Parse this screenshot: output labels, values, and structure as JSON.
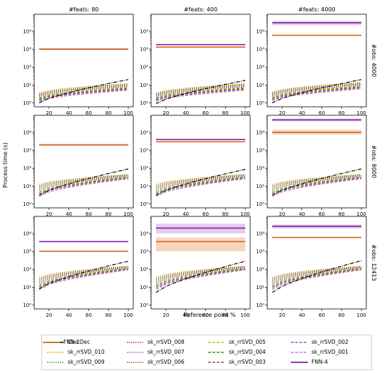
{
  "figure": {
    "ylabel": "Process time (s)",
    "xlabel": "Reference point %",
    "col_titles": [
      "#feats: 80",
      "#feats: 400",
      "#feats: 4000"
    ],
    "row_titles": [
      "#obs: 4000",
      "#obs: 8000",
      "#obs: 12413"
    ],
    "x_ticks": [
      "20",
      "40",
      "60",
      "80",
      "100"
    ],
    "y_ticks": [
      "10⁰",
      "10¹",
      "10²",
      "10³",
      "10⁴"
    ],
    "y_tick_values": [
      1,
      10,
      100,
      1000,
      10000
    ]
  },
  "legend": [
    {
      "label": "Cho.Dec",
      "color": "#000000",
      "style": "dashdot"
    },
    {
      "label": "sk_rrSVD_010",
      "color": "#e69f00",
      "style": "dotted"
    },
    {
      "label": "sk_rrSVD_009",
      "color": "#2ca02c",
      "style": "dotted"
    },
    {
      "label": "sk_rrSVD_008",
      "color": "#d62728",
      "style": "dotted"
    },
    {
      "label": "sk_rrSVD_007",
      "color": "#9467bd",
      "style": "dotted"
    },
    {
      "label": "sk_rrSVD_006",
      "color": "#8c564b",
      "style": "dotted"
    },
    {
      "label": "sk_rrSVD_005",
      "color": "#bcbd22",
      "style": "dashed"
    },
    {
      "label": "sk_rrSVD_004",
      "color": "#2ca02c",
      "style": "dashed"
    },
    {
      "label": "sk_rrSVD_003",
      "color": "#8c564b",
      "style": "dashed"
    },
    {
      "label": "sk_rrSVD_002",
      "color": "#9467bd",
      "style": "dashed"
    },
    {
      "label": "sk_rrSVD_001",
      "color": "#e377c2",
      "style": "dashed"
    },
    {
      "label": "FNN-4",
      "color": "#7b1fa2",
      "style": "solid"
    },
    {
      "label": "FNN-2",
      "color": "#d2691e",
      "style": "solid"
    }
  ],
  "chart_data": {
    "type": "line",
    "layout": "3x3 grid",
    "x": [
      10,
      20,
      30,
      40,
      50,
      60,
      70,
      80,
      90,
      100
    ],
    "xlim": [
      5,
      105
    ],
    "ylim": [
      0.6,
      90000
    ],
    "yscale": "log",
    "grid": false,
    "legend_placement": "bottom",
    "panels": [
      {
        "row": 0,
        "col": 0,
        "cho_dec": [
          1,
          20
        ],
        "rrsvd_hi": [
          3.5,
          12
        ],
        "rrsvd_lo": [
          1.2,
          5
        ],
        "fnn4": 1000,
        "fnn2": 1000,
        "fnn4_band": null,
        "fnn2_band": null
      },
      {
        "row": 0,
        "col": 1,
        "cho_dec": [
          0.9,
          18
        ],
        "rrsvd_hi": [
          3.5,
          12
        ],
        "rrsvd_lo": [
          1.2,
          5
        ],
        "fnn4": 1800,
        "fnn2": 1300,
        "fnn4_band": null,
        "fnn2_band": null
      },
      {
        "row": 0,
        "col": 2,
        "cho_dec": [
          1,
          20
        ],
        "rrsvd_hi": [
          4,
          14
        ],
        "rrsvd_lo": [
          1.3,
          6
        ],
        "fnn4": 30000,
        "fnn2": 6000,
        "fnn4_band": [
          22000,
          38000
        ],
        "fnn2_band": null
      },
      {
        "row": 1,
        "col": 0,
        "cho_dec": [
          3,
          90
        ],
        "rrsvd_hi": [
          12,
          45
        ],
        "rrsvd_lo": [
          2.5,
          25
        ],
        "fnn4": 2000,
        "fnn2": 2000,
        "fnn4_band": null,
        "fnn2_band": null
      },
      {
        "row": 1,
        "col": 1,
        "cho_dec": [
          3,
          85
        ],
        "rrsvd_hi": [
          12,
          45
        ],
        "rrsvd_lo": [
          2.5,
          25
        ],
        "fnn4": 4000,
        "fnn2": 3000,
        "fnn4_band": null,
        "fnn2_band": null
      },
      {
        "row": 1,
        "col": 2,
        "cho_dec": [
          3,
          90
        ],
        "rrsvd_hi": [
          12,
          45
        ],
        "rrsvd_lo": [
          2.5,
          25
        ],
        "fnn4": 50000,
        "fnn2": 10000,
        "fnn4_band": [
          42000,
          60000
        ],
        "fnn2_band": [
          7500,
          14000
        ]
      },
      {
        "row": 2,
        "col": 0,
        "cho_dec": [
          8,
          280
        ],
        "rrsvd_hi": [
          35,
          150
        ],
        "rrsvd_lo": [
          7,
          90
        ],
        "fnn4": 3500,
        "fnn2": 1000,
        "fnn4_band": null,
        "fnn2_band": null
      },
      {
        "row": 2,
        "col": 1,
        "cho_dec": [
          5,
          280
        ],
        "rrsvd_hi": [
          35,
          150
        ],
        "rrsvd_lo": [
          7,
          90
        ],
        "fnn4": 20000,
        "fnn2": 3500,
        "fnn4_band": [
          10000,
          35000
        ],
        "fnn2_band": [
          1000,
          6000
        ]
      },
      {
        "row": 2,
        "col": 2,
        "cho_dec": [
          5,
          300
        ],
        "rrsvd_hi": [
          35,
          150
        ],
        "rrsvd_lo": [
          7,
          90
        ],
        "fnn4": 25000,
        "fnn2": 6000,
        "fnn4_band": [
          19000,
          32000
        ],
        "fnn2_band": null
      }
    ]
  }
}
